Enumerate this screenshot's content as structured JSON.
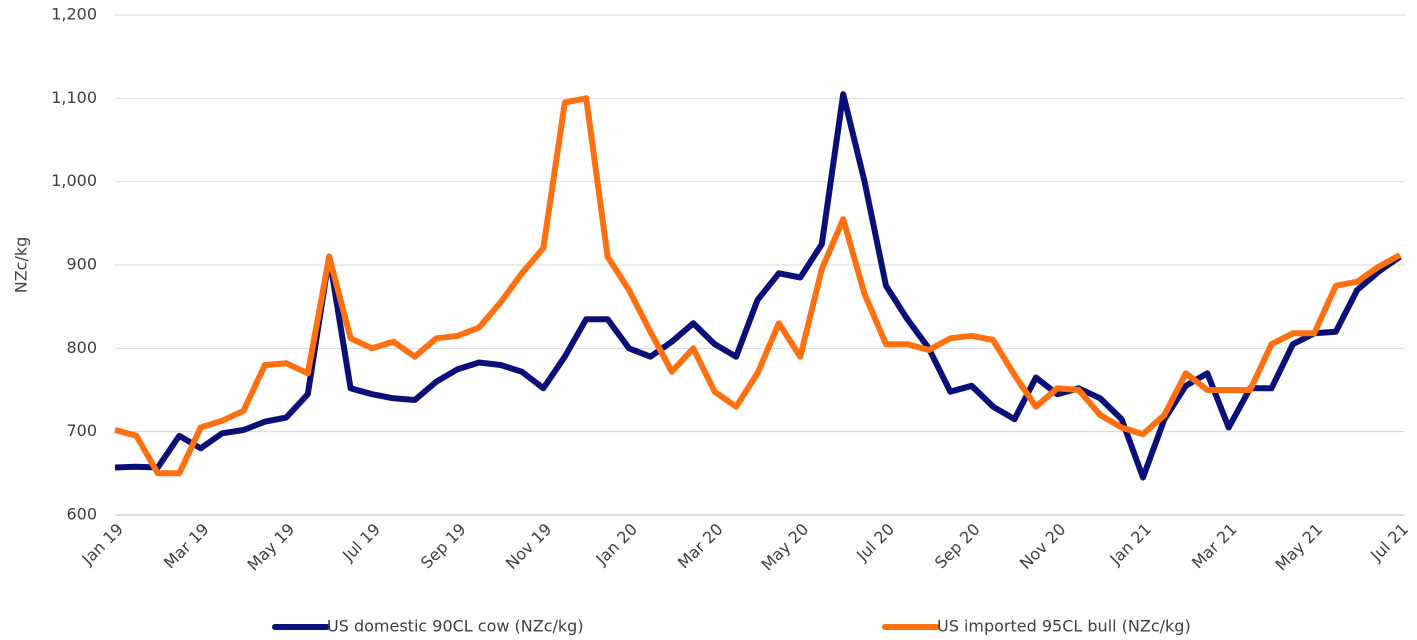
{
  "chart_data": {
    "type": "line",
    "ylabel": "NZc/kg",
    "categories": [
      "Jan 19",
      null,
      null,
      null,
      "Mar 19",
      null,
      null,
      null,
      "May 19",
      null,
      null,
      null,
      "Jul 19",
      null,
      null,
      null,
      "Sep 19",
      null,
      null,
      null,
      "Nov 19",
      null,
      null,
      null,
      "Jan 20",
      null,
      null,
      null,
      "Mar 20",
      null,
      null,
      null,
      "May 20",
      null,
      null,
      null,
      "Jul 20",
      null,
      null,
      null,
      "Sep 20",
      null,
      null,
      null,
      "Nov 20",
      null,
      null,
      null,
      "Jan 21",
      null,
      null,
      null,
      "Mar 21",
      null,
      null,
      null,
      "May 21",
      null,
      null,
      null,
      "Jul 21"
    ],
    "series": [
      {
        "name": "US domestic 90CL cow (NZc/kg)",
        "color": "#0b0f7a",
        "values": [
          657,
          658,
          657,
          695,
          680,
          698,
          702,
          712,
          717,
          745,
          910,
          752,
          745,
          740,
          738,
          760,
          775,
          783,
          780,
          772,
          752,
          790,
          835,
          835,
          800,
          790,
          808,
          830,
          805,
          790,
          858,
          890,
          885,
          925,
          1105,
          1000,
          875,
          835,
          800,
          748,
          755,
          730,
          715,
          765,
          745,
          752,
          740,
          715,
          645,
          715,
          755,
          770,
          705,
          752,
          752,
          805,
          818,
          820,
          870,
          892,
          910
        ]
      },
      {
        "name": "US imported 95CL bull (NZc/kg)",
        "color": "#ff7010",
        "values": [
          702,
          695,
          650,
          650,
          705,
          713,
          725,
          780,
          782,
          770,
          910,
          812,
          800,
          808,
          790,
          812,
          815,
          825,
          855,
          890,
          920,
          1095,
          1100,
          910,
          870,
          820,
          772,
          800,
          748,
          730,
          770,
          830,
          790,
          895,
          955,
          865,
          805,
          805,
          798,
          812,
          815,
          810,
          768,
          730,
          752,
          750,
          720,
          705,
          697,
          720,
          770,
          750,
          750,
          750,
          805,
          818,
          818,
          875,
          880,
          898,
          912
        ]
      }
    ],
    "ylim": [
      600,
      1200
    ],
    "yticks": [
      600,
      700,
      800,
      900,
      {
        "value": 1000,
        "label": "1,000"
      },
      {
        "value": 1100,
        "label": "1,100"
      },
      {
        "value": 1200,
        "label": "1,200"
      }
    ],
    "grid": true
  }
}
